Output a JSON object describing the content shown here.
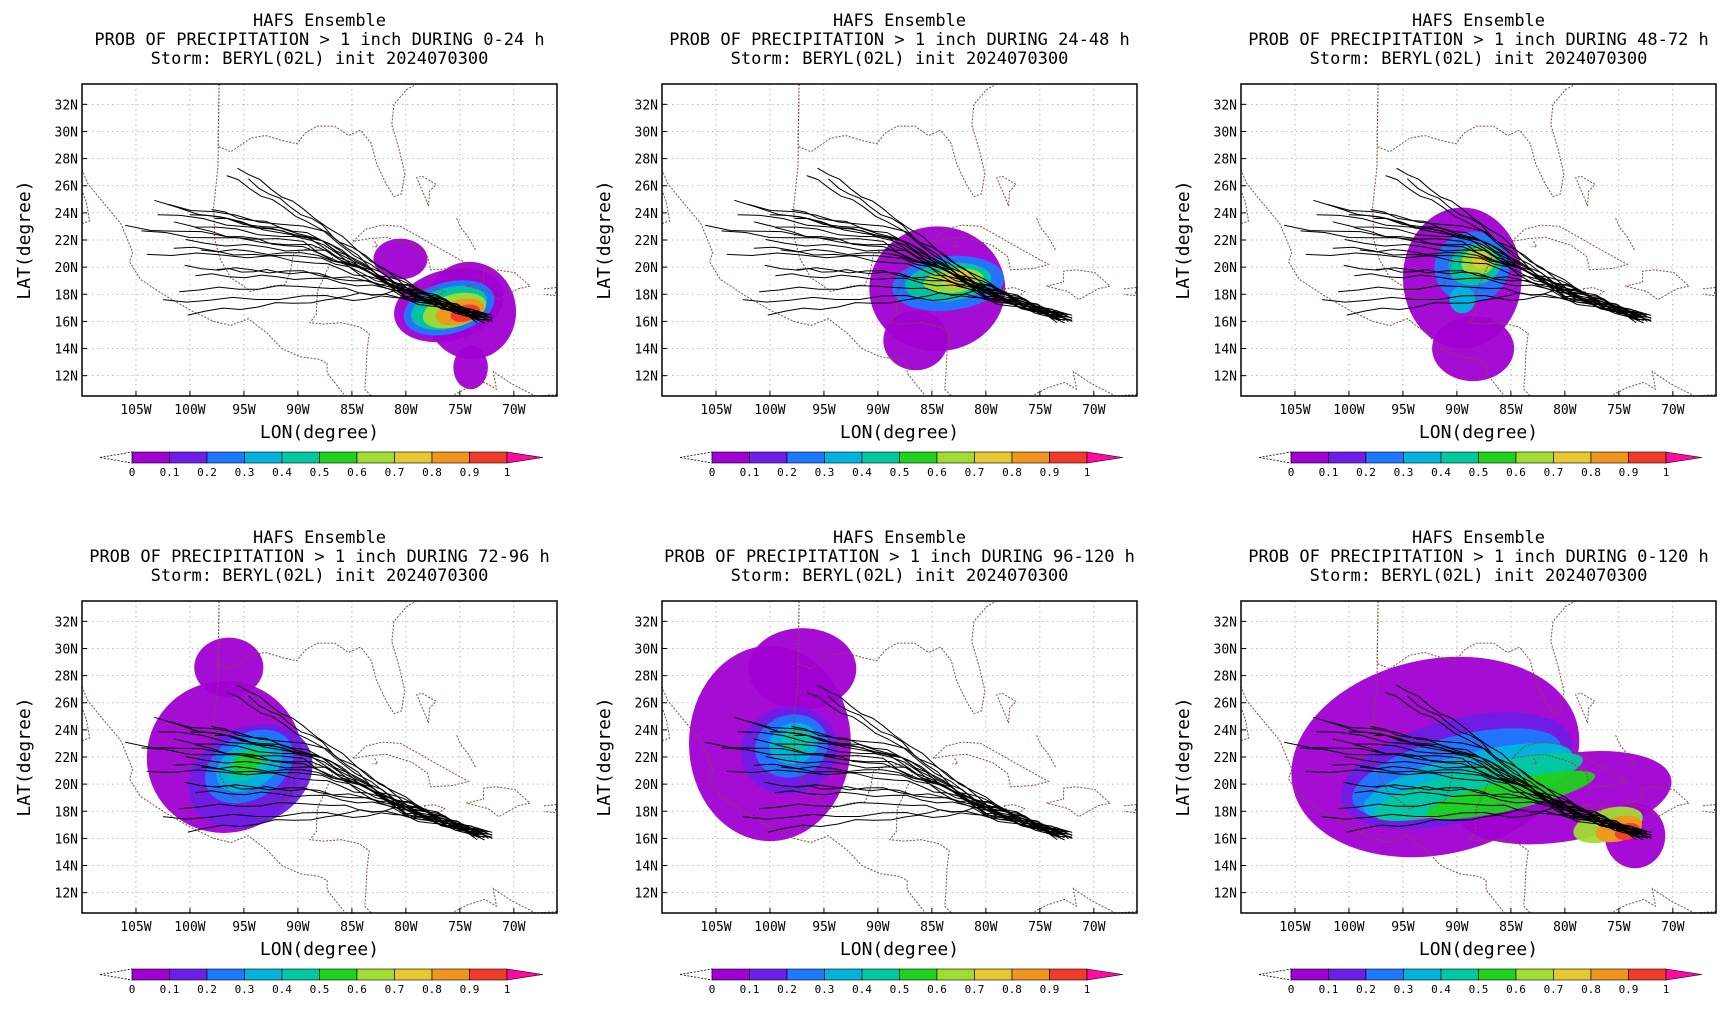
{
  "figure": {
    "panels": [
      {
        "title_lines": [
          "HAFS Ensemble",
          "PROB OF PRECIPITATION > 1 inch DURING  0-24 h",
          "Storm: BERYL(02L) init 2024070300"
        ]
      },
      {
        "title_lines": [
          "HAFS Ensemble",
          "PROB OF PRECIPITATION > 1 inch DURING 24-48 h",
          "Storm: BERYL(02L) init 2024070300"
        ]
      },
      {
        "title_lines": [
          "HAFS Ensemble",
          "PROB OF PRECIPITATION > 1 inch DURING 48-72 h",
          "Storm: BERYL(02L) init 2024070300"
        ]
      },
      {
        "title_lines": [
          "HAFS Ensemble",
          "PROB OF PRECIPITATION > 1 inch DURING 72-96 h",
          "Storm: BERYL(02L) init 2024070300"
        ]
      },
      {
        "title_lines": [
          "HAFS Ensemble",
          "PROB OF PRECIPITATION > 1 inch DURING 96-120 h",
          "Storm: BERYL(02L) init 2024070300"
        ]
      },
      {
        "title_lines": [
          "HAFS Ensemble",
          "PROB OF PRECIPITATION > 1 inch DURING 0-120 h",
          "Storm: BERYL(02L) init 2024070300"
        ]
      }
    ],
    "xlabel": "LON(degree)",
    "ylabel": "LAT(degree)",
    "lon_ticks": [
      "105W",
      "100W",
      "95W",
      "90W",
      "85W",
      "80W",
      "75W",
      "70W"
    ],
    "lat_ticks": [
      "32N",
      "30N",
      "28N",
      "26N",
      "24N",
      "22N",
      "20N",
      "18N",
      "16N",
      "14N",
      "12N"
    ],
    "colorbar_labels": [
      "0",
      "0.1",
      "0.2",
      "0.3",
      "0.4",
      "0.5",
      "0.6",
      "0.7",
      "0.8",
      "0.9",
      "1"
    ],
    "colorbar_colors": [
      "#a000d2",
      "#6e1ee6",
      "#1e78ff",
      "#00b4dc",
      "#00c8a0",
      "#1ed21e",
      "#a0dc32",
      "#e6c832",
      "#f0961e",
      "#f03c28",
      "#ff0aa0"
    ]
  }
}
